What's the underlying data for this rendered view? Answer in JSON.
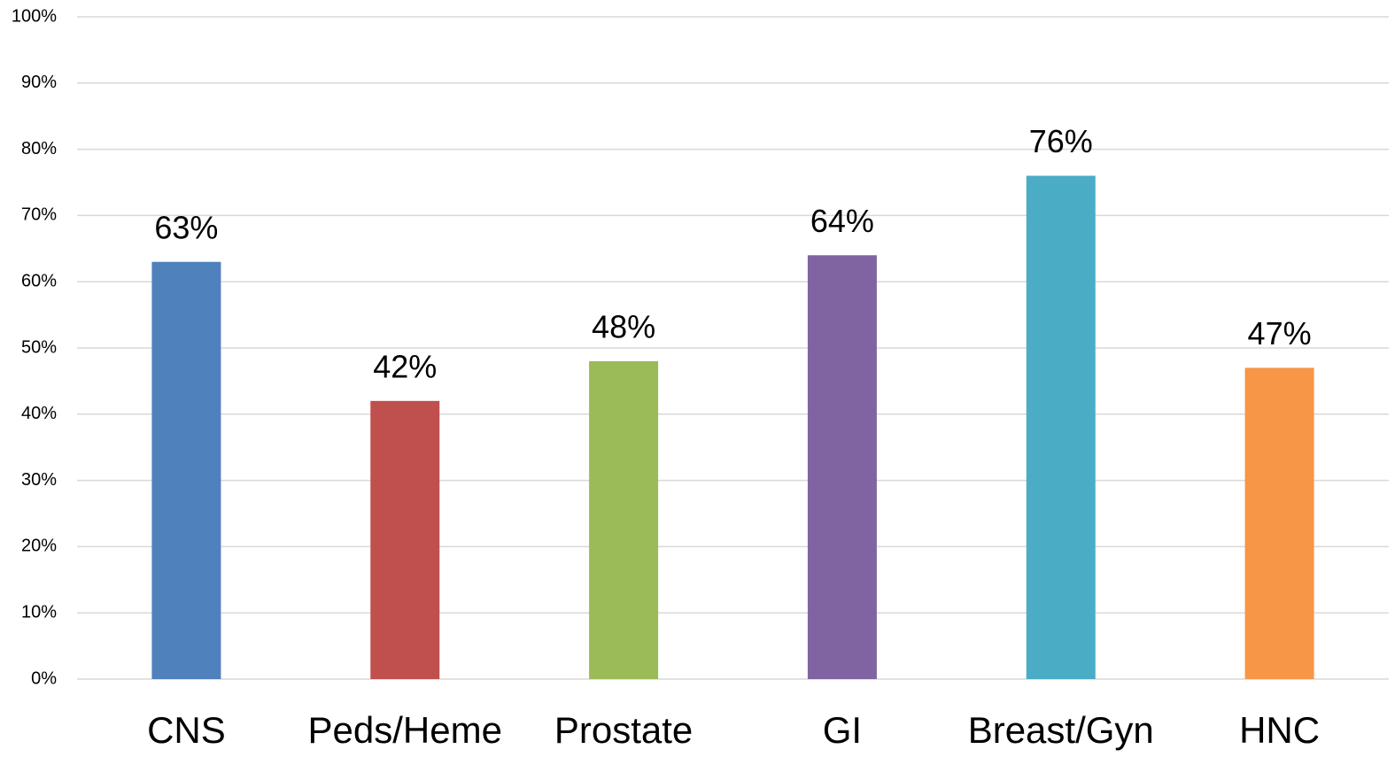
{
  "chart_data": {
    "type": "bar",
    "categories": [
      "CNS",
      "Peds/Heme",
      "Prostate",
      "GI",
      "Breast/Gyn",
      "HNC"
    ],
    "values": [
      63,
      42,
      48,
      64,
      76,
      47
    ],
    "value_labels": [
      "63%",
      "42%",
      "48%",
      "64%",
      "76%",
      "47%"
    ],
    "colors": [
      "#4f81bd",
      "#c0504d",
      "#9bbb59",
      "#8064a2",
      "#4bacc6",
      "#f79646"
    ],
    "ylim": [
      0,
      100
    ],
    "yticks": [
      {
        "value": 0,
        "label": "0%"
      },
      {
        "value": 10,
        "label": "10%"
      },
      {
        "value": 20,
        "label": "20%"
      },
      {
        "value": 30,
        "label": "30%"
      },
      {
        "value": 40,
        "label": "40%"
      },
      {
        "value": 50,
        "label": "50%"
      },
      {
        "value": 60,
        "label": "60%"
      },
      {
        "value": 70,
        "label": "70%"
      },
      {
        "value": 80,
        "label": "80%"
      },
      {
        "value": 90,
        "label": "90%"
      },
      {
        "value": 100,
        "label": "100%"
      }
    ],
    "grid": true
  }
}
